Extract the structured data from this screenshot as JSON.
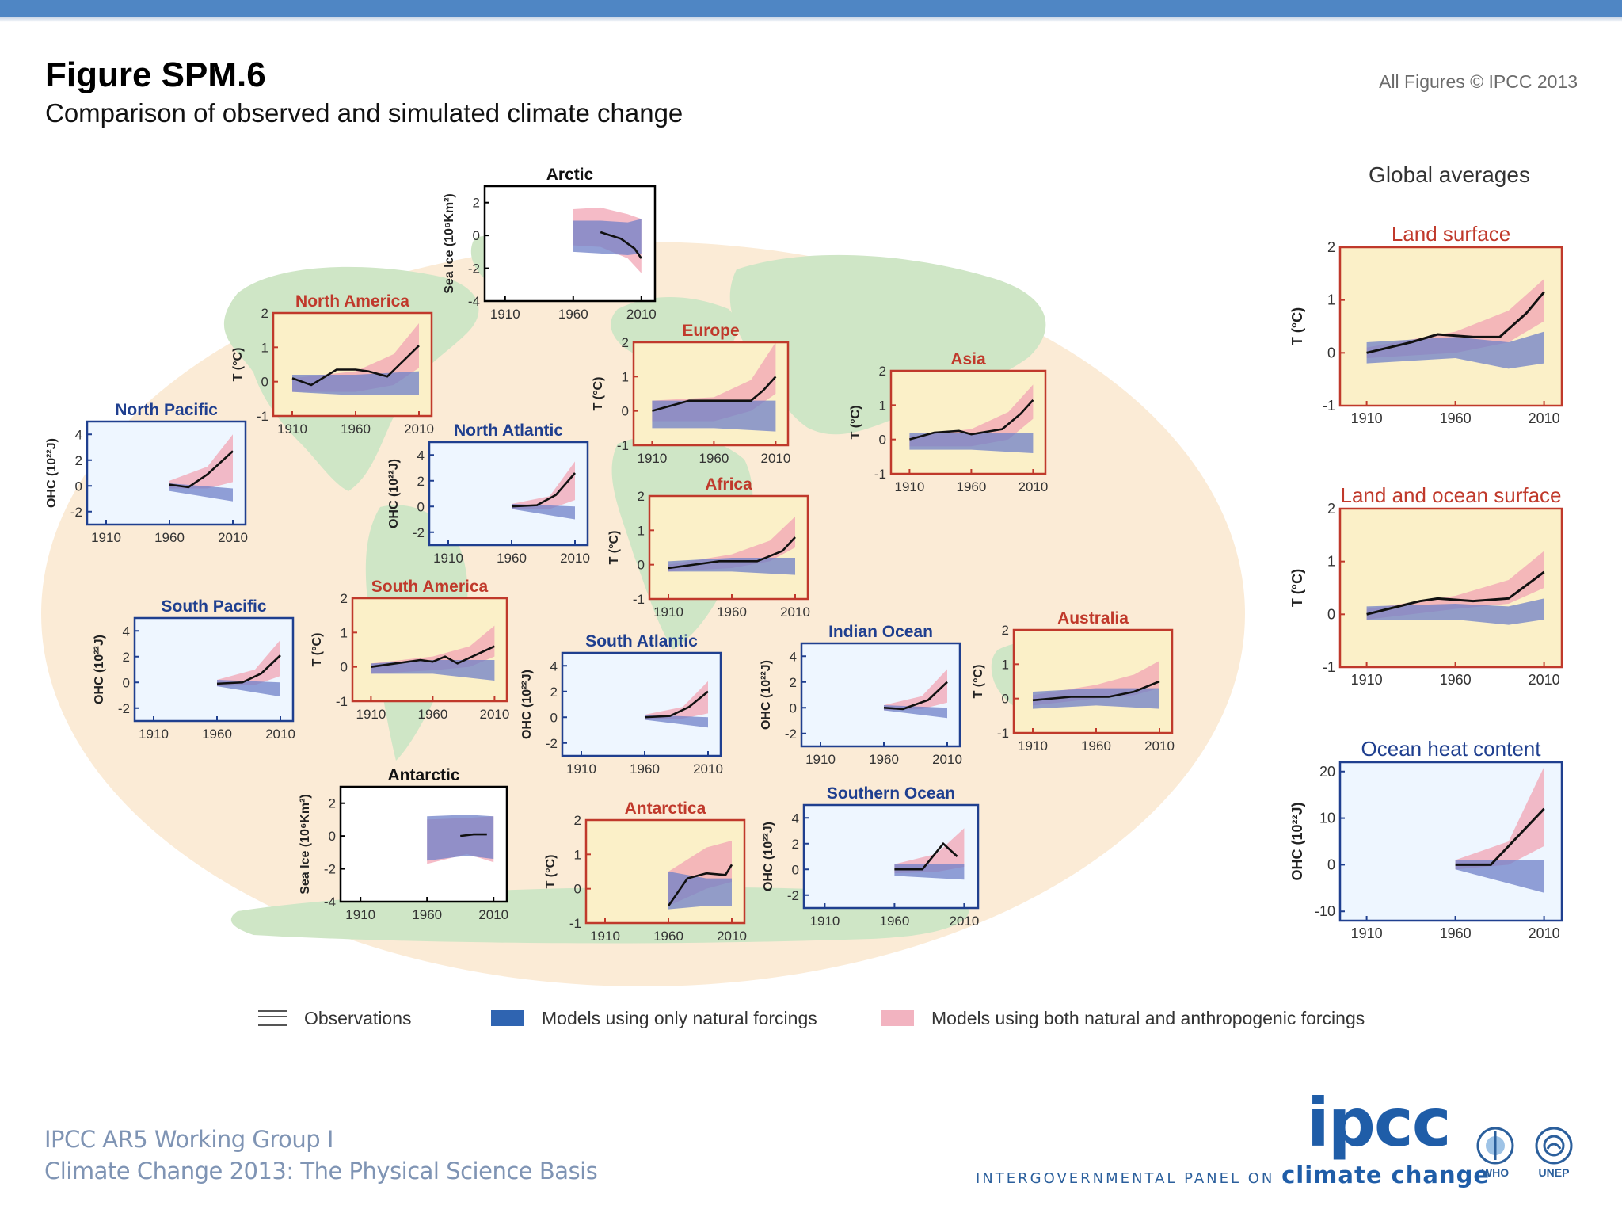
{
  "header": {
    "title": "Figure SPM.6",
    "subtitle": "Comparison of observed and simulated climate change",
    "copyright": "All Figures © IPCC 2013"
  },
  "global_averages": {
    "heading": "Global averages"
  },
  "legend": {
    "observations": "Observations",
    "natural": "Models using only natural forcings",
    "both": "Models using both natural and anthropogenic forcings"
  },
  "footer": {
    "line1": "IPCC AR5 Working Group I",
    "line2": "Climate Change 2013:  The Physical Science Basis",
    "logo": "ipcc",
    "tagline_prefix": "INTERGOVERNMENTAL PANEL ON",
    "tagline_emph": "climate change",
    "who": "WHO",
    "unep": "UNEP"
  },
  "colors": {
    "natural": "#6f80c8",
    "both": "#f2a4b4",
    "temp_frame": "#c0392b",
    "ocean_frame": "#1f3f8f",
    "ice_frame": "#000000",
    "temp_bg": "#fbf0c8",
    "ocean_bg": "#eef6ff",
    "map_land": "#cfe6c6",
    "map_bg": "#fbebd6"
  },
  "chart_data": [
    {
      "type": "line",
      "title": "Arctic",
      "kind": "ice",
      "ylabel": "Sea Ice (10⁶Km²)",
      "ylim": [
        -4,
        3
      ],
      "yticks": [
        -4,
        -2,
        0,
        2
      ],
      "x_ticks": [
        1910,
        1960,
        2010
      ],
      "natural": [
        [
          1960,
          0.9,
          -1.0
        ],
        [
          1980,
          0.9,
          -1.1
        ],
        [
          2000,
          0.8,
          -1.2
        ],
        [
          2010,
          1.0,
          -1.1
        ]
      ],
      "both": [
        [
          1960,
          1.6,
          -0.6
        ],
        [
          1980,
          1.7,
          -0.7
        ],
        [
          2000,
          1.3,
          -1.4
        ],
        [
          2010,
          1.0,
          -2.3
        ]
      ],
      "obs": [
        [
          1980,
          0.2
        ],
        [
          1995,
          -0.2
        ],
        [
          2005,
          -0.8
        ],
        [
          2010,
          -1.4
        ]
      ]
    },
    {
      "type": "line",
      "title": "North America",
      "kind": "temp",
      "ylabel": "T (°C)",
      "ylim": [
        -1,
        2
      ],
      "yticks": [
        -1,
        0,
        1,
        2
      ],
      "x_ticks": [
        1910,
        1960,
        2010
      ],
      "natural": [
        [
          1910,
          0.2,
          -0.3
        ],
        [
          1960,
          0.2,
          -0.4
        ],
        [
          2010,
          0.3,
          -0.4
        ]
      ],
      "both": [
        [
          1910,
          0.1,
          -0.3
        ],
        [
          1960,
          0.3,
          -0.3
        ],
        [
          1990,
          0.8,
          -0.1
        ],
        [
          2010,
          1.7,
          0.4
        ]
      ],
      "obs": [
        [
          1910,
          0.1
        ],
        [
          1925,
          -0.1
        ],
        [
          1945,
          0.35
        ],
        [
          1960,
          0.35
        ],
        [
          1970,
          0.3
        ],
        [
          1985,
          0.15
        ],
        [
          2010,
          1.05
        ]
      ]
    },
    {
      "type": "line",
      "title": "Europe",
      "kind": "temp",
      "ylabel": "T (°C)",
      "ylim": [
        -1,
        2
      ],
      "yticks": [
        -1,
        0,
        1,
        2
      ],
      "x_ticks": [
        1910,
        1960,
        2010
      ],
      "natural": [
        [
          1910,
          0.3,
          -0.5
        ],
        [
          1960,
          0.3,
          -0.5
        ],
        [
          2010,
          0.3,
          -0.6
        ]
      ],
      "both": [
        [
          1910,
          0.3,
          -0.3
        ],
        [
          1960,
          0.4,
          -0.3
        ],
        [
          1990,
          0.9,
          0
        ],
        [
          2010,
          2.0,
          0.5
        ]
      ],
      "obs": [
        [
          1910,
          0.0
        ],
        [
          1940,
          0.3
        ],
        [
          1970,
          0.3
        ],
        [
          1990,
          0.3
        ],
        [
          2000,
          0.6
        ],
        [
          2010,
          1.0
        ]
      ]
    },
    {
      "type": "line",
      "title": "Asia",
      "kind": "temp",
      "ylabel": "T (°C)",
      "ylim": [
        -1,
        2
      ],
      "yticks": [
        -1,
        0,
        1,
        2
      ],
      "x_ticks": [
        1910,
        1960,
        2010
      ],
      "natural": [
        [
          1910,
          0.2,
          -0.3
        ],
        [
          1960,
          0.2,
          -0.3
        ],
        [
          2010,
          0.2,
          -0.4
        ]
      ],
      "both": [
        [
          1910,
          0.1,
          -0.2
        ],
        [
          1960,
          0.3,
          -0.2
        ],
        [
          1990,
          0.8,
          0
        ],
        [
          2010,
          1.6,
          0.6
        ]
      ],
      "obs": [
        [
          1910,
          0.0
        ],
        [
          1930,
          0.2
        ],
        [
          1950,
          0.25
        ],
        [
          1960,
          0.15
        ],
        [
          1985,
          0.3
        ],
        [
          2000,
          0.75
        ],
        [
          2010,
          1.15
        ]
      ]
    },
    {
      "type": "line",
      "title": "Africa",
      "kind": "temp",
      "ylabel": "T (°C)",
      "ylim": [
        -1,
        2
      ],
      "yticks": [
        -1,
        0,
        1,
        2
      ],
      "x_ticks": [
        1910,
        1960,
        2010
      ],
      "natural": [
        [
          1910,
          0.1,
          -0.2
        ],
        [
          1960,
          0.2,
          -0.2
        ],
        [
          2010,
          0.2,
          -0.3
        ]
      ],
      "both": [
        [
          1910,
          0.0,
          -0.2
        ],
        [
          1960,
          0.3,
          -0.1
        ],
        [
          1990,
          0.7,
          0.1
        ],
        [
          2010,
          1.4,
          0.5
        ]
      ],
      "obs": [
        [
          1910,
          -0.1
        ],
        [
          1950,
          0.1
        ],
        [
          1980,
          0.1
        ],
        [
          2000,
          0.4
        ],
        [
          2010,
          0.8
        ]
      ]
    },
    {
      "type": "line",
      "title": "South America",
      "kind": "temp",
      "ylabel": "T (°C)",
      "ylim": [
        -1,
        2
      ],
      "yticks": [
        -1,
        0,
        1,
        2
      ],
      "x_ticks": [
        1910,
        1960,
        2010
      ],
      "natural": [
        [
          1910,
          0.1,
          -0.2
        ],
        [
          1960,
          0.2,
          -0.2
        ],
        [
          2010,
          0.2,
          -0.4
        ]
      ],
      "both": [
        [
          1910,
          0.1,
          -0.2
        ],
        [
          1960,
          0.3,
          -0.1
        ],
        [
          1990,
          0.6,
          0
        ],
        [
          2010,
          1.2,
          0.3
        ]
      ],
      "obs": [
        [
          1910,
          0.0
        ],
        [
          1930,
          0.1
        ],
        [
          1950,
          0.2
        ],
        [
          1960,
          0.15
        ],
        [
          1970,
          0.3
        ],
        [
          1980,
          0.1
        ],
        [
          2010,
          0.6
        ]
      ]
    },
    {
      "type": "line",
      "title": "Australia",
      "kind": "temp",
      "ylabel": "T (°C)",
      "ylim": [
        -1,
        2
      ],
      "yticks": [
        -1,
        0,
        1,
        2
      ],
      "x_ticks": [
        1910,
        1960,
        2010
      ],
      "natural": [
        [
          1910,
          0.2,
          -0.3
        ],
        [
          1960,
          0.3,
          -0.2
        ],
        [
          2010,
          0.3,
          -0.3
        ]
      ],
      "both": [
        [
          1910,
          0.1,
          -0.2
        ],
        [
          1960,
          0.4,
          0
        ],
        [
          1990,
          0.7,
          0.1
        ],
        [
          2010,
          1.1,
          0.3
        ]
      ],
      "obs": [
        [
          1910,
          -0.05
        ],
        [
          1940,
          0.05
        ],
        [
          1970,
          0.05
        ],
        [
          1990,
          0.2
        ],
        [
          2010,
          0.5
        ]
      ]
    },
    {
      "type": "line",
      "title": "Antarctica",
      "kind": "temp",
      "ylabel": "T (°C)",
      "ylim": [
        -1,
        2
      ],
      "yticks": [
        -1,
        0,
        1,
        2
      ],
      "x_ticks": [
        1910,
        1960,
        2010
      ],
      "natural": [
        [
          1960,
          0.5,
          -0.6
        ],
        [
          1990,
          0.3,
          -0.5
        ],
        [
          2010,
          0.3,
          -0.5
        ]
      ],
      "both": [
        [
          1960,
          0.5,
          -0.5
        ],
        [
          1990,
          1.2,
          0
        ],
        [
          2010,
          1.4,
          0.2
        ]
      ],
      "obs": [
        [
          1960,
          -0.5
        ],
        [
          1975,
          0.3
        ],
        [
          1990,
          0.45
        ],
        [
          2005,
          0.4
        ],
        [
          2010,
          0.7
        ]
      ]
    },
    {
      "type": "line",
      "title": "North Pacific",
      "kind": "ohc",
      "ylabel": "OHC (10²²J)",
      "ylim": [
        -3,
        5
      ],
      "yticks": [
        -2,
        0,
        2,
        4
      ],
      "x_ticks": [
        1910,
        1960,
        2010
      ],
      "natural": [
        [
          1960,
          0.2,
          -0.4
        ],
        [
          2010,
          -0.2,
          -1.2
        ]
      ],
      "both": [
        [
          1960,
          0.4,
          -0.2
        ],
        [
          1990,
          1.5,
          -0.2
        ],
        [
          2010,
          4.0,
          0.3
        ]
      ],
      "obs": [
        [
          1960,
          0.1
        ],
        [
          1975,
          -0.1
        ],
        [
          1990,
          0.9
        ],
        [
          2010,
          2.7
        ]
      ]
    },
    {
      "type": "line",
      "title": "North Atlantic",
      "kind": "ohc",
      "ylabel": "OHC (10²²J)",
      "ylim": [
        -3,
        5
      ],
      "yticks": [
        -2,
        0,
        2,
        4
      ],
      "x_ticks": [
        1910,
        1960,
        2010
      ],
      "natural": [
        [
          1960,
          0.2,
          -0.2
        ],
        [
          2010,
          0,
          -1.0
        ]
      ],
      "both": [
        [
          1960,
          0.2,
          -0.2
        ],
        [
          1990,
          0.8,
          -0.2
        ],
        [
          2010,
          3.5,
          0.5
        ]
      ],
      "obs": [
        [
          1960,
          0.0
        ],
        [
          1980,
          0.1
        ],
        [
          1995,
          0.9
        ],
        [
          2010,
          2.6
        ]
      ]
    },
    {
      "type": "line",
      "title": "South Pacific",
      "kind": "ohc",
      "ylabel": "OHC (10²²J)",
      "ylim": [
        -3,
        5
      ],
      "yticks": [
        -2,
        0,
        2,
        4
      ],
      "x_ticks": [
        1910,
        1960,
        2010
      ],
      "natural": [
        [
          1960,
          0.2,
          -0.3
        ],
        [
          2010,
          0,
          -1.1
        ]
      ],
      "both": [
        [
          1960,
          0.2,
          -0.3
        ],
        [
          1990,
          1.0,
          -0.2
        ],
        [
          2010,
          3.3,
          0.5
        ]
      ],
      "obs": [
        [
          1960,
          -0.1
        ],
        [
          1980,
          0.0
        ],
        [
          1995,
          0.7
        ],
        [
          2010,
          2.1
        ]
      ]
    },
    {
      "type": "line",
      "title": "South Atlantic",
      "kind": "ohc",
      "ylabel": "OHC (10²²J)",
      "ylim": [
        -3,
        5
      ],
      "yticks": [
        -2,
        0,
        2,
        4
      ],
      "x_ticks": [
        1910,
        1960,
        2010
      ],
      "natural": [
        [
          1960,
          0.2,
          -0.2
        ],
        [
          2010,
          0,
          -0.8
        ]
      ],
      "both": [
        [
          1960,
          0.2,
          -0.2
        ],
        [
          1990,
          0.8,
          -0.1
        ],
        [
          2010,
          2.8,
          0.3
        ]
      ],
      "obs": [
        [
          1960,
          0.0
        ],
        [
          1980,
          0.1
        ],
        [
          1995,
          0.8
        ],
        [
          2010,
          2.0
        ]
      ]
    },
    {
      "type": "line",
      "title": "Indian Ocean",
      "kind": "ohc",
      "ylabel": "OHC (10²²J)",
      "ylim": [
        -3,
        5
      ],
      "yticks": [
        -2,
        0,
        2,
        4
      ],
      "x_ticks": [
        1910,
        1960,
        2010
      ],
      "natural": [
        [
          1960,
          0.2,
          -0.2
        ],
        [
          2010,
          0,
          -0.8
        ]
      ],
      "both": [
        [
          1960,
          0.2,
          -0.2
        ],
        [
          1990,
          0.9,
          -0.1
        ],
        [
          2010,
          3.0,
          0.4
        ]
      ],
      "obs": [
        [
          1960,
          0.0
        ],
        [
          1975,
          -0.1
        ],
        [
          1995,
          0.6
        ],
        [
          2010,
          2.0
        ]
      ]
    },
    {
      "type": "line",
      "title": "Southern Ocean",
      "kind": "ohc",
      "ylabel": "OHC (10²²J)",
      "ylim": [
        -3,
        5
      ],
      "yticks": [
        -2,
        0,
        2,
        4
      ],
      "x_ticks": [
        1910,
        1960,
        2010
      ],
      "natural": [
        [
          1960,
          0.4,
          -0.5
        ],
        [
          2010,
          0.4,
          -0.8
        ]
      ],
      "both": [
        [
          1960,
          0.4,
          -0.3
        ],
        [
          1990,
          1.2,
          -0.2
        ],
        [
          2010,
          3.2,
          0.2
        ]
      ],
      "obs": [
        [
          1960,
          0.0
        ],
        [
          1980,
          0.0
        ],
        [
          1995,
          2.0
        ],
        [
          2005,
          1.0
        ]
      ]
    },
    {
      "type": "line",
      "title": "Antarctic",
      "kind": "ice",
      "ylabel": "Sea Ice (10⁶Km²)",
      "ylim": [
        -4,
        3
      ],
      "yticks": [
        -4,
        -2,
        0,
        2
      ],
      "x_ticks": [
        1910,
        1960,
        2010
      ],
      "natural": [
        [
          1960,
          1.2,
          -1.5
        ],
        [
          1990,
          1.3,
          -1.2
        ],
        [
          2010,
          1.2,
          -1.4
        ]
      ],
      "both": [
        [
          1960,
          1.0,
          -1.7
        ],
        [
          1990,
          1.1,
          -1.1
        ],
        [
          2010,
          1.2,
          -1.6
        ]
      ],
      "obs": [
        [
          1985,
          0.0
        ],
        [
          1995,
          0.1
        ],
        [
          2005,
          0.1
        ]
      ]
    },
    {
      "type": "line",
      "title": "Land surface",
      "kind": "global_temp",
      "ylabel": "T (°C)",
      "ylim": [
        -1,
        2
      ],
      "yticks": [
        -1,
        0,
        1,
        2
      ],
      "x_ticks": [
        1910,
        1960,
        2010
      ],
      "natural": [
        [
          1910,
          0.2,
          -0.2
        ],
        [
          1960,
          0.3,
          -0.1
        ],
        [
          1990,
          0.2,
          -0.3
        ],
        [
          2010,
          0.4,
          -0.2
        ]
      ],
      "both": [
        [
          1910,
          0.1,
          -0.1
        ],
        [
          1960,
          0.4,
          0
        ],
        [
          1990,
          0.8,
          0.2
        ],
        [
          2010,
          1.4,
          0.6
        ]
      ],
      "obs": [
        [
          1910,
          0.0
        ],
        [
          1935,
          0.2
        ],
        [
          1950,
          0.35
        ],
        [
          1970,
          0.3
        ],
        [
          1985,
          0.3
        ],
        [
          2000,
          0.75
        ],
        [
          2010,
          1.15
        ]
      ]
    },
    {
      "type": "line",
      "title": "Land and ocean surface",
      "kind": "global_temp",
      "ylabel": "T (°C)",
      "ylim": [
        -1,
        2
      ],
      "yticks": [
        -1,
        0,
        1,
        2
      ],
      "x_ticks": [
        1910,
        1960,
        2010
      ],
      "natural": [
        [
          1910,
          0.15,
          -0.1
        ],
        [
          1960,
          0.2,
          -0.1
        ],
        [
          1990,
          0.15,
          -0.2
        ],
        [
          2010,
          0.3,
          -0.1
        ]
      ],
      "both": [
        [
          1910,
          0.1,
          -0.1
        ],
        [
          1960,
          0.35,
          0.1
        ],
        [
          1990,
          0.65,
          0.2
        ],
        [
          2010,
          1.2,
          0.5
        ]
      ],
      "obs": [
        [
          1910,
          0.0
        ],
        [
          1940,
          0.25
        ],
        [
          1950,
          0.3
        ],
        [
          1970,
          0.25
        ],
        [
          1990,
          0.3
        ],
        [
          2010,
          0.8
        ]
      ]
    },
    {
      "type": "line",
      "title": "Ocean heat content",
      "kind": "global_ohc",
      "ylabel": "OHC (10²²J)",
      "ylim": [
        -12,
        22
      ],
      "yticks": [
        -10,
        0,
        10,
        20
      ],
      "x_ticks": [
        1910,
        1960,
        2010
      ],
      "natural": [
        [
          1960,
          1,
          -1
        ],
        [
          2010,
          1,
          -6
        ]
      ],
      "both": [
        [
          1960,
          1,
          -1
        ],
        [
          1990,
          5,
          0
        ],
        [
          2010,
          21,
          4
        ]
      ],
      "obs": [
        [
          1960,
          0
        ],
        [
          1980,
          0
        ],
        [
          1995,
          6
        ],
        [
          2010,
          12
        ]
      ]
    }
  ]
}
